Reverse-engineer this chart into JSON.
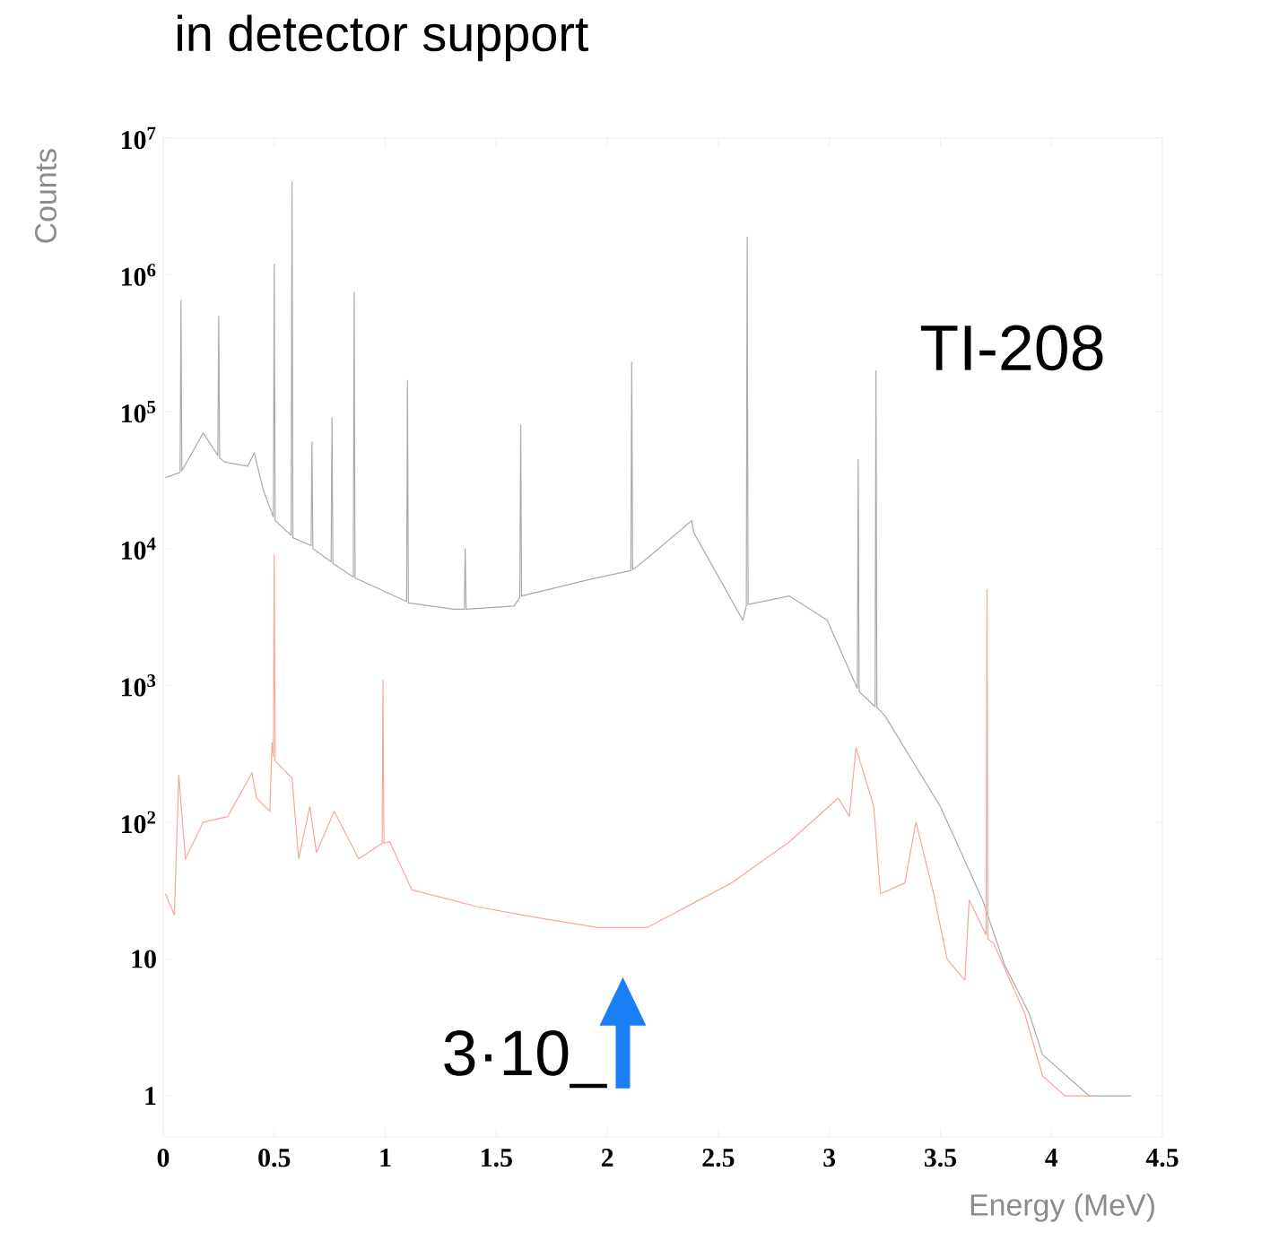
{
  "chart_data": {
    "type": "line",
    "title": "in detector support",
    "xlabel": "Energy (MeV)",
    "ylabel": "Counts",
    "log": "y",
    "xlim": [
      0,
      4.5
    ],
    "ylim": [
      0.5,
      10000000
    ],
    "xticks": [
      0,
      0.5,
      1,
      1.5,
      2,
      2.5,
      3,
      3.5,
      4,
      4.5
    ],
    "yticks": [
      1,
      10,
      {
        "value": 100,
        "label": "10$^{2}$"
      },
      {
        "value": 1000,
        "label": "10$^{3}$"
      },
      {
        "value": 10000,
        "label": "10$^{4}$"
      },
      {
        "value": 100000,
        "label": "10$^{5}$"
      },
      {
        "value": 1000000,
        "label": "10$^{6}$"
      },
      {
        "value": 10000000,
        "label": "10$^{7}$"
      }
    ],
    "annotations": [
      "TI-208",
      "3·10_"
    ],
    "series": [
      {
        "color": "#aaaaaa",
        "x": [
          0.01,
          0.076,
          0.08,
          0.084,
          0.18,
          0.246,
          0.25,
          0.254,
          0.275,
          0.38,
          0.41,
          0.45,
          0.496,
          0.5,
          0.504,
          0.576,
          0.58,
          0.584,
          0.666,
          0.67,
          0.674,
          0.756,
          0.76,
          0.764,
          0.856,
          0.86,
          0.864,
          1.096,
          1.1,
          1.104,
          1.31,
          1.356,
          1.36,
          1.364,
          1.58,
          1.606,
          1.61,
          1.614,
          1.93,
          2.106,
          2.11,
          2.114,
          2.18,
          2.38,
          2.39,
          2.61,
          2.626,
          2.63,
          2.634,
          2.82,
          2.99,
          3.12,
          3.126,
          3.13,
          3.134,
          3.206,
          3.21,
          3.214,
          3.25,
          3.5,
          3.69,
          3.79,
          3.9,
          3.96,
          4.17,
          4.36
        ],
        "values": [
          33000,
          36000,
          650000,
          37000,
          70000,
          48000,
          500000,
          46000,
          43000,
          40000,
          50000,
          27000,
          17000,
          1200000,
          16000,
          12500,
          4800000,
          12000,
          10500,
          60000,
          10000,
          8000,
          90000,
          7800,
          6200,
          750000,
          6100,
          4100,
          170000,
          4000,
          3600,
          3600,
          10000,
          3600,
          3800,
          4400,
          80000,
          4500,
          6000,
          6900,
          230000,
          7000,
          8500,
          16000,
          13000,
          3000,
          3800,
          1900000,
          3900,
          4500,
          3000,
          1000,
          950,
          45000,
          900,
          700,
          200000,
          690,
          600,
          130,
          27,
          9,
          4,
          2,
          1,
          1
        ]
      },
      {
        "color": "#f5a89a",
        "x": [
          0.01,
          0.05,
          0.07,
          0.1,
          0.18,
          0.29,
          0.4,
          0.42,
          0.48,
          0.49,
          0.496,
          0.5,
          0.504,
          0.58,
          0.61,
          0.66,
          0.69,
          0.77,
          0.88,
          0.986,
          0.99,
          0.994,
          1.02,
          1.12,
          1.42,
          1.69,
          1.96,
          2.18,
          2.56,
          2.82,
          3.04,
          3.09,
          3.12,
          3.2,
          3.23,
          3.34,
          3.39,
          3.47,
          3.53,
          3.61,
          3.63,
          3.706,
          3.71,
          3.714,
          3.74,
          3.88,
          3.96,
          4.06,
          4.2
        ],
        "values": [
          30,
          21,
          220,
          54,
          100,
          110,
          230,
          150,
          120,
          380,
          300,
          9000,
          280,
          210,
          54,
          130,
          60,
          120,
          54,
          70,
          1100,
          70,
          72,
          32,
          24,
          20,
          17,
          17,
          36,
          72,
          150,
          110,
          350,
          130,
          30,
          36,
          100,
          30,
          10,
          7,
          27,
          15,
          5000,
          14,
          13,
          4,
          1.4,
          1,
          1
        ]
      }
    ]
  }
}
